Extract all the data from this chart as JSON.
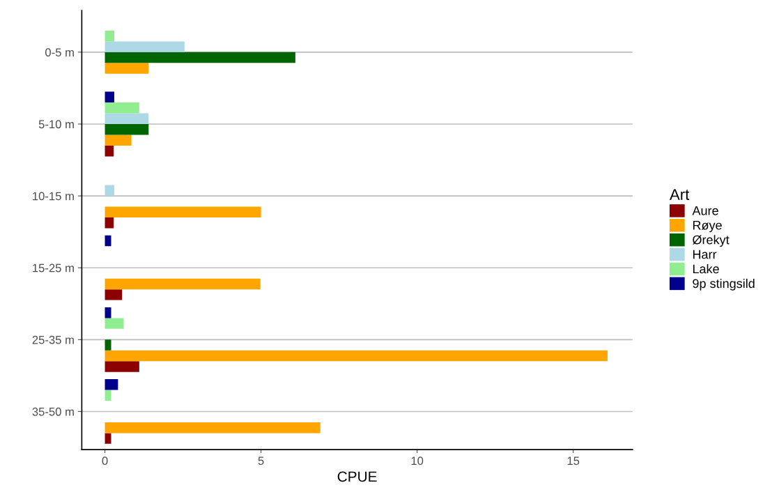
{
  "chart_data": {
    "type": "bar",
    "orientation": "horizontal",
    "xlabel": "CPUE",
    "legend_title": "Art",
    "legend": "right",
    "grid": "y",
    "categories": [
      "0-5 m",
      "5-10 m",
      "10-15 m",
      "15-25 m",
      "25-35 m",
      "35-50 m"
    ],
    "xlim": [
      -0.74,
      16.9
    ],
    "xticks": [
      0,
      5,
      10,
      15
    ],
    "series": [
      {
        "name": "Aure",
        "color": "#8b0000",
        "values": [
          null,
          0.28,
          0.28,
          0.55,
          1.1,
          0.2
        ]
      },
      {
        "name": "Røye",
        "color": "#ffa500",
        "values": [
          1.4,
          0.85,
          5.0,
          4.98,
          16.1,
          6.9
        ]
      },
      {
        "name": "Ørekyt",
        "color": "#006400",
        "values": [
          6.1,
          1.4,
          null,
          null,
          0.2,
          null
        ]
      },
      {
        "name": "Harr",
        "color": "#add8e6",
        "values": [
          2.55,
          1.4,
          0.3,
          null,
          null,
          null
        ]
      },
      {
        "name": "Lake",
        "color": "#90ee90",
        "values": [
          0.3,
          1.1,
          null,
          null,
          0.6,
          0.2
        ]
      },
      {
        "name": "9p stingsild",
        "color": "#00008b",
        "values": [
          null,
          0.3,
          null,
          0.2,
          0.2,
          0.42
        ]
      }
    ]
  }
}
